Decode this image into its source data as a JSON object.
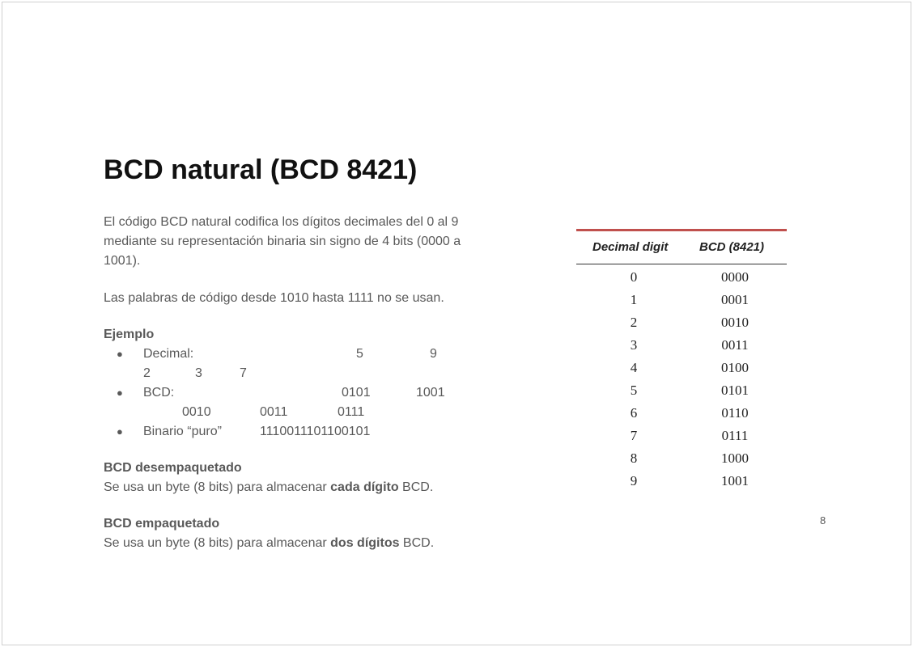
{
  "slide": {
    "title": "BCD natural (BCD 8421)",
    "intro": "El código BCD natural codifica los dígitos decimales del 0 al 9 mediante su representación binaria sin signo de 4 bits (0000 a 1001).",
    "note": "Las palabras de código desde 1010 hasta 1111 no se usan.",
    "example": {
      "heading": "Ejemplo",
      "items": [
        {
          "label": "Decimal:",
          "values": [
            "5",
            "9",
            "2",
            "3",
            "7"
          ]
        },
        {
          "label": "BCD:",
          "values": [
            "0101",
            "1001",
            "0010",
            "0011",
            "0111"
          ]
        },
        {
          "label": "Binario “puro”",
          "values": [
            "1110011101100101"
          ]
        }
      ]
    },
    "unpacked": {
      "heading": "BCD desempaquetado",
      "parts": [
        "Se usa un byte (8 bits) para almacenar ",
        "cada dígito",
        " BCD."
      ]
    },
    "packed": {
      "heading": "BCD empaquetado",
      "parts": [
        "Se usa un byte (8 bits) para almacenar ",
        "dos dígitos",
        " BCD."
      ]
    },
    "page_number": "8"
  },
  "table": {
    "header": [
      "Decimal digit",
      "BCD (8421)"
    ],
    "rows": [
      [
        "0",
        "0000"
      ],
      [
        "1",
        "0001"
      ],
      [
        "2",
        "0010"
      ],
      [
        "3",
        "0011"
      ],
      [
        "4",
        "0100"
      ],
      [
        "5",
        "0101"
      ],
      [
        "6",
        "0110"
      ],
      [
        "7",
        "0111"
      ],
      [
        "8",
        "1000"
      ],
      [
        "9",
        "1001"
      ]
    ]
  }
}
